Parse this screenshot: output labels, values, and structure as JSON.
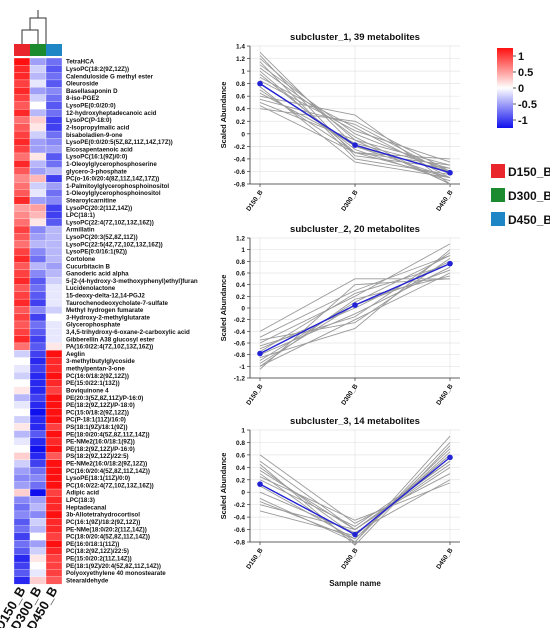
{
  "heatmap": {
    "columns": [
      "D150_B",
      "D300_B",
      "D450_B"
    ],
    "column_colors": [
      "#e8262b",
      "#1c8a2e",
      "#1f86c6"
    ],
    "rows": [
      "TetraHCA",
      "LysoPC(18:2(9Z,12Z))",
      "Calenduloside G methyl ester",
      "Oleuroside",
      "Basellasaponin D",
      "8-iso-PGE2",
      "LysoPE(0:0/20:0)",
      "12-hydroxyheptadecanoic acid",
      "LysoPC(P-18:0)",
      "2-Isopropylmalic acid",
      "bisaboladien-9-one",
      "LysoPE(0:0/20:5(5Z,8Z,11Z,14Z,17Z))",
      "Eicosapentaenoic acid",
      "LysoPC(16:1(9Z)/0:0)",
      "1-Oleoylglycerophosphoserine",
      "glycero-3-phosphate",
      "PC(o-16:0/20:4(8Z,11Z,14Z,17Z))",
      "1-Palmitoylglycerophosphoinositol",
      "1-Oleoylglycerophosphoinositol",
      "Stearoylcarnitine",
      "LysoPC(20:2(11Z,14Z))",
      "LPC(18:1)",
      "LysoPC(22:4(7Z,10Z,13Z,16Z))",
      "Armillatin",
      "LysoPC(20:3(5Z,8Z,11Z))",
      "LysoPC(22:5(4Z,7Z,10Z,13Z,16Z))",
      "LysoPE(0:0/16:1(9Z))",
      "Cortolone",
      "Cucurbitacin B",
      "Ganoderic acid alpha",
      "5-[2-(4-hydroxy-3-methoxyphenyl)ethyl]furan",
      "Lucidenolactone",
      "15-deoxy-delta-12,14-PGJ2",
      "Taurochenodeoxycholate-7-sulfate",
      "Methyl hydrogen fumarate",
      "3-Hydroxy-2-methylglutarate",
      "Glycerophosphate",
      "3,4,5-trihydroxy-6-oxane-2-carboxylic acid",
      "Gibberellin A38 glucosyl ester",
      "PA(16:0/22:4(7Z,10Z,13Z,16Z))",
      "Aeglin",
      "3-methylbutylglycoside",
      "methylpentan-3-one",
      "PC(16:0/18:2(9Z,12Z))",
      "PE(15:0/22:1(13Z))",
      "Boviquinone 4",
      "PE(20:3(5Z,8Z,11Z)/P-16:0)",
      "PE(18:2(9Z,12Z)/P-18:0)",
      "PC(15:0/18:2(9Z,12Z))",
      "PC(P-18:1(11Z)/16:0)",
      "PS(18:1(9Z)/18:1(9Z))",
      "PE(18:0/20:4(5Z,8Z,11Z,14Z))",
      "PE-NMe2(16:0/18:1(9Z))",
      "PE(18:2(9Z,12Z)/P-16:0)",
      "PS(18:2(9Z,12Z)/22:5)",
      "PE-NMe2(16:0/18:2(9Z,12Z))",
      "PC(16:0/20:4(5Z,8Z,11Z,14Z))",
      "LysoPE(18:1(11Z)/0:0)",
      "PC(16:0/22:4(7Z,10Z,13Z,16Z))",
      "Adipic acid",
      "LPC(18:3)",
      "Heptadecanal",
      "3b-Allotetrahydrocortisol",
      "PC(16:1(9Z)/18:2(9Z,12Z))",
      "PE-NMe(18:0/20:2(11Z,14Z))",
      "PC(18:0/20:4(5Z,8Z,11Z,14Z))",
      "PE(16:0/18:1(11Z))",
      "PC(18:2(9Z,12Z)/22:5)",
      "PE(15:0/20:2(11Z,14Z))",
      "PE(18:1(9Z)/20:4(5Z,8Z,11Z,14Z))",
      "Polyoxyethylene 40 monostearate",
      "Stearaldehyde"
    ],
    "values": [
      [
        1.0,
        -0.4,
        -0.6
      ],
      [
        0.9,
        -0.2,
        -0.7
      ],
      [
        0.9,
        -0.3,
        -0.6
      ],
      [
        0.8,
        -0.1,
        -0.7
      ],
      [
        0.9,
        -0.4,
        -0.5
      ],
      [
        0.8,
        -0.2,
        -0.6
      ],
      [
        0.7,
        0.0,
        -0.7
      ],
      [
        0.9,
        -0.3,
        -0.6
      ],
      [
        0.6,
        0.2,
        -0.8
      ],
      [
        0.7,
        0.1,
        -0.8
      ],
      [
        0.8,
        -0.2,
        -0.6
      ],
      [
        0.9,
        -0.4,
        -0.5
      ],
      [
        0.8,
        -0.4,
        -0.4
      ],
      [
        0.6,
        0.1,
        -0.7
      ],
      [
        0.9,
        -0.3,
        -0.6
      ],
      [
        0.7,
        -0.4,
        -0.3
      ],
      [
        0.5,
        0.3,
        -0.8
      ],
      [
        0.6,
        -0.2,
        -0.4
      ],
      [
        0.7,
        -0.1,
        -0.6
      ],
      [
        0.9,
        -0.4,
        -0.5
      ],
      [
        0.4,
        0.4,
        -0.8
      ],
      [
        0.5,
        0.3,
        -0.8
      ],
      [
        0.6,
        0.1,
        -0.7
      ],
      [
        0.8,
        -0.5,
        -0.3
      ],
      [
        0.7,
        -0.4,
        -0.3
      ],
      [
        0.6,
        -0.3,
        -0.3
      ],
      [
        0.8,
        -0.5,
        -0.3
      ],
      [
        0.9,
        -0.6,
        -0.3
      ],
      [
        0.7,
        -0.3,
        -0.4
      ],
      [
        0.8,
        -0.5,
        -0.3
      ],
      [
        0.9,
        -0.7,
        -0.2
      ],
      [
        0.7,
        -0.6,
        -0.1
      ],
      [
        0.8,
        -0.7,
        -0.1
      ],
      [
        0.9,
        -0.8,
        -0.1
      ],
      [
        0.7,
        -0.5,
        -0.2
      ],
      [
        0.8,
        -0.8,
        0.0
      ],
      [
        0.7,
        -0.6,
        -0.1
      ],
      [
        0.8,
        -0.7,
        -0.1
      ],
      [
        0.9,
        -0.8,
        -0.1
      ],
      [
        0.6,
        -0.7,
        0.1
      ],
      [
        -0.2,
        -0.8,
        1.0
      ],
      [
        0.0,
        -0.9,
        0.9
      ],
      [
        -0.1,
        -0.8,
        0.9
      ],
      [
        -0.2,
        -0.9,
        1.0
      ],
      [
        0.0,
        -0.9,
        0.9
      ],
      [
        0.1,
        -0.9,
        0.8
      ],
      [
        -0.3,
        -0.8,
        1.0
      ],
      [
        -0.1,
        -0.9,
        1.0
      ],
      [
        0.0,
        -1.0,
        1.0
      ],
      [
        -0.2,
        -0.9,
        1.0
      ],
      [
        0.1,
        -0.9,
        0.8
      ],
      [
        -0.3,
        -0.7,
        1.0
      ],
      [
        -0.1,
        -0.9,
        0.9
      ],
      [
        0.0,
        -1.0,
        1.0
      ],
      [
        0.2,
        -0.9,
        0.7
      ],
      [
        -0.2,
        -0.8,
        1.0
      ],
      [
        -0.4,
        -0.6,
        1.0
      ],
      [
        -0.5,
        -0.5,
        1.0
      ],
      [
        -0.4,
        -0.6,
        1.0
      ],
      [
        0.2,
        -1.0,
        0.8
      ],
      [
        -0.5,
        -0.4,
        0.9
      ],
      [
        -0.6,
        -0.3,
        0.9
      ],
      [
        -0.5,
        -0.5,
        1.0
      ],
      [
        -0.7,
        -0.2,
        0.9
      ],
      [
        -0.6,
        -0.3,
        0.9
      ],
      [
        -0.8,
        0.0,
        0.8
      ],
      [
        -0.6,
        -0.4,
        1.0
      ],
      [
        -0.7,
        -0.2,
        0.9
      ],
      [
        -0.9,
        0.1,
        0.8
      ],
      [
        -0.8,
        0.0,
        0.8
      ],
      [
        -0.7,
        -0.1,
        0.8
      ],
      [
        -0.9,
        0.2,
        0.7
      ]
    ]
  },
  "color_scale": {
    "ticks": [
      "1",
      "0.5",
      "0",
      "-0.5",
      "-1"
    ],
    "high_color": "#ff1010",
    "mid_color": "#ffffff",
    "low_color": "#1010ee"
  },
  "legend": {
    "items": [
      {
        "label": "D150_B",
        "color": "#e8262b"
      },
      {
        "label": "D300_B",
        "color": "#1c8a2e"
      },
      {
        "label": "D450_B",
        "color": "#1f86c6"
      }
    ]
  },
  "chart_data": [
    {
      "type": "line",
      "title": "subcluster_1, 39 metabolites",
      "ylabel": "Scaled Abundance",
      "xlabel": "",
      "categories": [
        "D150_B",
        "D300_B",
        "D450_B"
      ],
      "ylim": [
        -0.8,
        1.4
      ],
      "yticks": [
        "1.4",
        "1.2",
        "1",
        "0.8",
        "0.6",
        "0.4",
        "0.2",
        "0",
        "-0.2",
        "-0.4",
        "-0.6",
        "-0.8"
      ],
      "mean": [
        0.8,
        -0.18,
        -0.62
      ],
      "lines": [
        [
          1.3,
          -0.2,
          -0.7
        ],
        [
          1.2,
          -0.1,
          -0.8
        ],
        [
          1.1,
          0.0,
          -0.6
        ],
        [
          1.0,
          -0.3,
          -0.5
        ],
        [
          0.9,
          0.1,
          -0.7
        ],
        [
          0.8,
          -0.2,
          -0.6
        ],
        [
          0.7,
          -0.3,
          -0.7
        ],
        [
          0.6,
          0.3,
          -0.8
        ],
        [
          1.25,
          -0.35,
          -0.55
        ],
        [
          0.5,
          -0.1,
          -0.5
        ],
        [
          0.4,
          0.2,
          -0.6
        ],
        [
          1.15,
          -0.4,
          -0.65
        ],
        [
          0.95,
          -0.25,
          -0.75
        ],
        [
          0.85,
          0.05,
          -0.45
        ],
        [
          0.65,
          -0.15,
          -0.55
        ],
        [
          0.75,
          -0.45,
          -0.7
        ],
        [
          1.05,
          -0.05,
          -0.8
        ],
        [
          0.55,
          0.15,
          -0.65
        ],
        [
          0.45,
          -0.3,
          -0.4
        ]
      ]
    },
    {
      "type": "line",
      "title": "subcluster_2, 20 metabolites",
      "ylabel": "Scaled Abundance",
      "xlabel": "",
      "categories": [
        "D150_B",
        "D300_B",
        "D450_B"
      ],
      "ylim": [
        -1.2,
        1.2
      ],
      "yticks": [
        "1.2",
        "1",
        "0.8",
        "0.6",
        "0.4",
        "0.2",
        "0",
        "-0.2",
        "-0.4",
        "-0.6",
        "-0.8",
        "-1",
        "-1.2"
      ],
      "mean": [
        -0.78,
        0.05,
        0.76
      ],
      "lines": [
        [
          -0.4,
          0.5,
          0.5
        ],
        [
          -0.5,
          0.3,
          0.9
        ],
        [
          -0.6,
          0.2,
          1.1
        ],
        [
          -0.7,
          0.0,
          0.8
        ],
        [
          -0.8,
          -0.1,
          0.7
        ],
        [
          -0.9,
          0.1,
          0.9
        ],
        [
          -1.0,
          -0.2,
          0.6
        ],
        [
          -1.05,
          0.4,
          0.5
        ],
        [
          -0.85,
          -0.35,
          1.0
        ],
        [
          -0.65,
          -0.15,
          0.95
        ],
        [
          -0.95,
          0.05,
          0.65
        ],
        [
          -0.75,
          0.25,
          0.75
        ],
        [
          -0.55,
          -0.25,
          0.85
        ],
        [
          -1.0,
          0.15,
          0.55
        ]
      ]
    },
    {
      "type": "line",
      "title": "subcluster_3, 14 metabolites",
      "ylabel": "Scaled Abundance",
      "xlabel": "Sample name",
      "categories": [
        "D150_B",
        "D300_B",
        "D450_B"
      ],
      "ylim": [
        -0.8,
        1.0
      ],
      "yticks": [
        "1",
        "0.8",
        "0.6",
        "0.4",
        "0.2",
        "0",
        "-0.2",
        "-0.4",
        "-0.6",
        "-0.8"
      ],
      "mean": [
        0.13,
        -0.68,
        0.56
      ],
      "lines": [
        [
          0.6,
          -0.5,
          0.3
        ],
        [
          0.5,
          -0.6,
          0.4
        ],
        [
          0.4,
          -0.7,
          0.6
        ],
        [
          0.3,
          -0.8,
          0.9
        ],
        [
          0.2,
          -0.55,
          0.5
        ],
        [
          0.1,
          -0.75,
          0.7
        ],
        [
          0.0,
          -0.65,
          0.2
        ],
        [
          -0.1,
          -0.8,
          0.8
        ],
        [
          -0.2,
          -0.6,
          0.5
        ],
        [
          -0.3,
          -0.7,
          0.6
        ],
        [
          0.45,
          -0.85,
          0.75
        ],
        [
          0.25,
          -0.45,
          0.15
        ],
        [
          -0.15,
          -0.75,
          0.65
        ],
        [
          0.35,
          -0.6,
          0.45
        ]
      ]
    }
  ]
}
